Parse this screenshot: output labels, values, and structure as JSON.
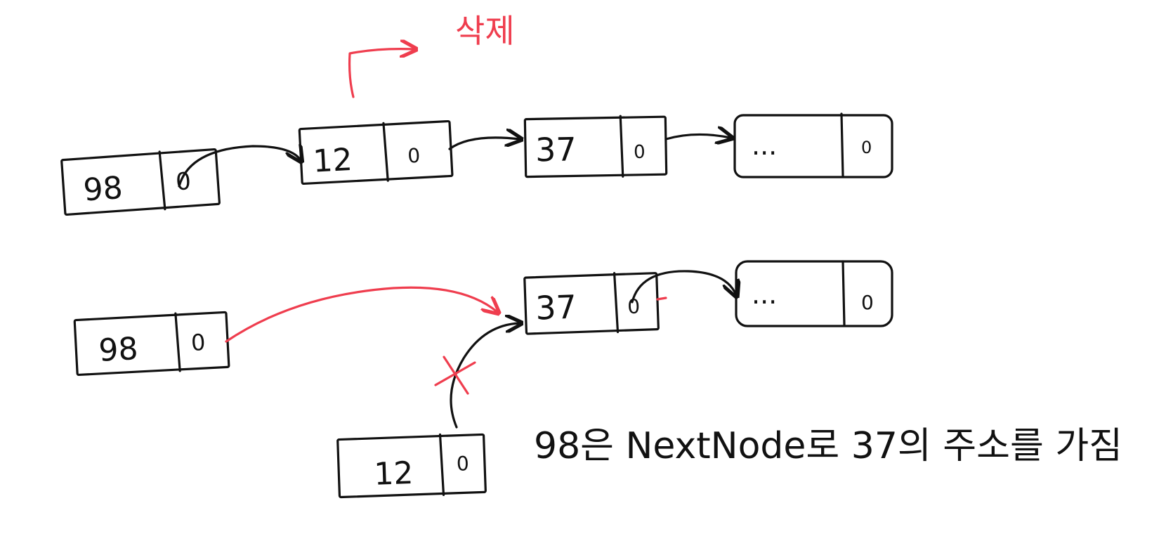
{
  "colors": {
    "ink": "#111111",
    "accent": "#ef3d4e",
    "background": "#ffffff"
  },
  "top_label": "삭제",
  "row1": {
    "nodes": [
      {
        "value": "98",
        "next": "0"
      },
      {
        "value": "12",
        "next": "0"
      },
      {
        "value": "37",
        "next": "0"
      },
      {
        "value": "...",
        "next": "0"
      }
    ]
  },
  "row2": {
    "nodes": [
      {
        "value": "98",
        "next": "0"
      },
      {
        "value": "37",
        "next": "0"
      },
      {
        "value": "...",
        "next": "0"
      }
    ],
    "removed_node": {
      "value": "12",
      "next": "0"
    }
  },
  "caption": "98은 NextNode로 37의 주소를 가짐"
}
